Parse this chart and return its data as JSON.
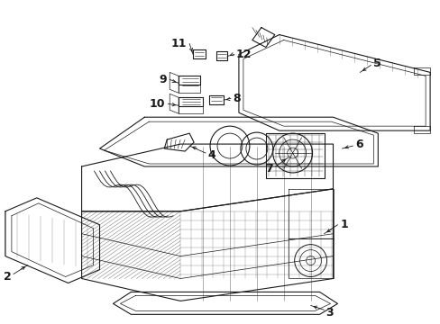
{
  "background_color": "#ffffff",
  "line_color": "#1a1a1a",
  "label_color": "#000000",
  "fig_width": 4.89,
  "fig_height": 3.6,
  "dpi": 100,
  "lw_main": 0.8,
  "lw_thin": 0.5,
  "lw_thick": 1.0
}
